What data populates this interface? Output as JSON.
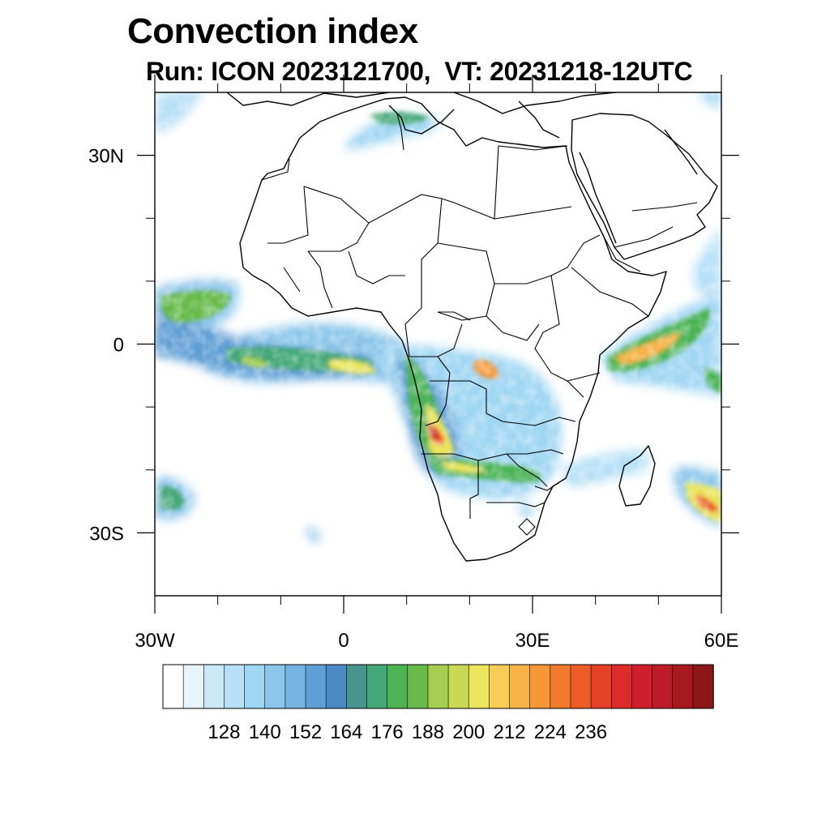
{
  "title": "Convection index",
  "subtitle": "Run: ICON 2023121700,  VT: 20231218-12UTC",
  "map": {
    "lon_range": [
      -30,
      60
    ],
    "lat_range": [
      -40,
      40
    ],
    "lon_ticks": [
      {
        "value": -30,
        "label": "30W"
      },
      {
        "value": 0,
        "label": "0"
      },
      {
        "value": 30,
        "label": "30E"
      },
      {
        "value": 60,
        "label": "60E"
      }
    ],
    "lat_ticks": [
      {
        "value": 30,
        "label": "30N"
      },
      {
        "value": 0,
        "label": "0"
      },
      {
        "value": -30,
        "label": "30S"
      }
    ],
    "minor_lon_ticks": [
      -20,
      -10,
      10,
      20,
      40,
      50
    ],
    "minor_lat_ticks": [
      20,
      10,
      -10,
      -20
    ]
  },
  "colorbar": {
    "labels": [
      "128",
      "140",
      "152",
      "164",
      "176",
      "188",
      "200",
      "212",
      "224",
      "236"
    ],
    "colors": [
      "#ffffff",
      "#e8f5fd",
      "#cce9f8",
      "#b5e0f6",
      "#9fd6f3",
      "#8cc6ea",
      "#76b5e2",
      "#5e9fd5",
      "#4a8bc7",
      "#46968f",
      "#44a877",
      "#4cb454",
      "#67bb4b",
      "#a6cf4f",
      "#c9d955",
      "#eae55c",
      "#f6cd55",
      "#f7b346",
      "#f69838",
      "#f17a2d",
      "#ec5c27",
      "#e44126",
      "#dd2b2a",
      "#cf1e2c",
      "#bd1a2a",
      "#a7191f",
      "#8d1717"
    ]
  },
  "chart_data": {
    "type": "heatmap",
    "title": "Convection index",
    "subtitle": "Run: ICON 2023121700,  VT: 20231218-12UTC",
    "x_range": [
      -30,
      60
    ],
    "y_range": [
      -40,
      40
    ],
    "colorbar_levels": [
      128,
      140,
      152,
      164,
      176,
      188,
      200,
      212,
      224,
      236
    ],
    "regions": [
      {
        "lon": 14,
        "lat": -15,
        "level": 224
      },
      {
        "lon": -27,
        "lat": 7,
        "level": 188
      },
      {
        "lon": 43,
        "lat": -2,
        "level": 188
      },
      {
        "lon": 57,
        "lat": -25,
        "level": 212
      },
      {
        "lon": 6,
        "lat": -1,
        "level": 176
      },
      {
        "lon": 21,
        "lat": -4,
        "level": 200
      },
      {
        "lon": 28,
        "lat": -19,
        "level": 188
      },
      {
        "lon": 56,
        "lat": 5,
        "level": 176
      },
      {
        "lon": 8,
        "lat": 35,
        "level": 164
      },
      {
        "lon": -27,
        "lat": -24,
        "level": 164
      }
    ]
  }
}
